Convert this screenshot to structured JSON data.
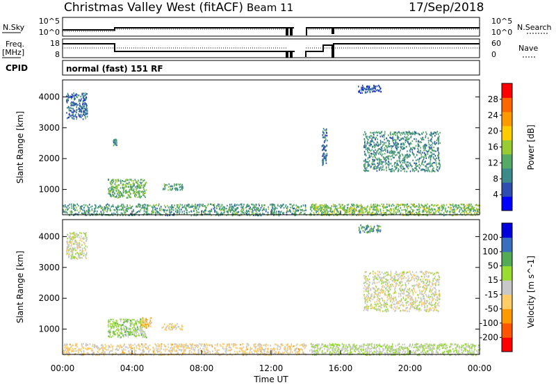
{
  "header": {
    "station": "Christmas Valley West (fitACF)",
    "beam": "Beam 11",
    "date": "17/Sep/2018"
  },
  "side_labels": {
    "nsky": "N.Sky",
    "nsearch": "N.Search",
    "freq": "Freq.",
    "mhz": "[MHz]",
    "nave": "Nave",
    "cpid": "CPID",
    "cpid_value": "normal (fast) 151 RF"
  },
  "mini_axes": {
    "noise_ticks_left": [
      "10^5",
      "10^0"
    ],
    "noise_ticks_right": [
      "10^5",
      "10^0"
    ],
    "freq_ticks": [
      "18",
      "8"
    ],
    "nave_ticks": [
      "60",
      "0"
    ]
  },
  "chart_data": [
    {
      "type": "heatmap",
      "panel": "power",
      "ylabel": "Slant Range [km]",
      "xlabel": "",
      "xlim": [
        "00:00",
        "24:00"
      ],
      "ylim": [
        180,
        4550
      ],
      "y_ticks": [
        "1000",
        "2000",
        "3000",
        "4000"
      ],
      "colorbar_label": "Power [dB]",
      "colorbar_ticks": [
        "4",
        "8",
        "12",
        "16",
        "20",
        "24",
        "28"
      ],
      "colorbar_range": [
        0,
        32
      ],
      "colors": [
        "#0000ff",
        "#2e4fb0",
        "#3c8a8a",
        "#55aa66",
        "#99cc33",
        "#ffcc00",
        "#ff9900",
        "#ff6600",
        "#ff0000"
      ],
      "regions": [
        {
          "t0": 0.2,
          "t1": 1.4,
          "r0": 3300,
          "r1": 4150,
          "level": 6
        },
        {
          "t0": 2.6,
          "t1": 4.8,
          "r0": 750,
          "r1": 1350,
          "level": 13
        },
        {
          "t0": 5.7,
          "t1": 6.9,
          "r0": 1000,
          "r1": 1200,
          "level": 11
        },
        {
          "t0": 2.9,
          "t1": 3.1,
          "r0": 2450,
          "r1": 2650,
          "level": 8
        },
        {
          "t0": 0.0,
          "t1": 14.0,
          "r0": 180,
          "r1": 550,
          "level": 10
        },
        {
          "t0": 14.2,
          "t1": 24.0,
          "r0": 180,
          "r1": 550,
          "level": 14
        },
        {
          "t0": 17.3,
          "t1": 21.7,
          "r0": 1600,
          "r1": 2900,
          "level": 9
        },
        {
          "t0": 14.9,
          "t1": 15.2,
          "r0": 1800,
          "r1": 3000,
          "level": 6
        },
        {
          "t0": 17.0,
          "t1": 18.3,
          "r0": 4150,
          "r1": 4400,
          "level": 5
        }
      ]
    },
    {
      "type": "heatmap",
      "panel": "velocity",
      "ylabel": "Slant Range [km]",
      "xlabel": "Time UT",
      "x_ticks": [
        "00:00",
        "04:00",
        "08:00",
        "12:00",
        "16:00",
        "20:00",
        "00:00"
      ],
      "xlim": [
        "00:00",
        "24:00"
      ],
      "ylim": [
        180,
        4550
      ],
      "y_ticks": [
        "1000",
        "2000",
        "3000",
        "4000"
      ],
      "colorbar_label": "Velocity [m s^-1]",
      "colorbar_ticks": [
        "200",
        "100",
        "50",
        "15",
        "-15",
        "-50",
        "-100",
        "-200"
      ],
      "colorbar_range": [
        -250,
        250
      ],
      "colors": [
        "#ff0000",
        "#ff5500",
        "#ff9900",
        "#ffcc66",
        "#c8c8c8",
        "#99dd33",
        "#55aa55",
        "#3a6fbf",
        "#0000dd"
      ],
      "regions": [
        {
          "t0": 0.2,
          "t1": 1.4,
          "r0": 3300,
          "r1": 4150,
          "velocity": 0
        },
        {
          "t0": 2.6,
          "t1": 4.8,
          "r0": 750,
          "r1": 1350,
          "velocity": 60
        },
        {
          "t0": 4.5,
          "t1": 5.1,
          "r0": 1050,
          "r1": 1400,
          "velocity": -80
        },
        {
          "t0": 5.7,
          "t1": 6.9,
          "r0": 1000,
          "r1": 1200,
          "velocity": -20
        },
        {
          "t0": 0.0,
          "t1": 14.0,
          "r0": 180,
          "r1": 550,
          "velocity": -40
        },
        {
          "t0": 14.2,
          "t1": 24.0,
          "r0": 180,
          "r1": 550,
          "velocity": 30
        },
        {
          "t0": 17.3,
          "t1": 21.7,
          "r0": 1600,
          "r1": 2900,
          "velocity": 0
        },
        {
          "t0": 17.0,
          "t1": 18.3,
          "r0": 4150,
          "r1": 4400,
          "velocity": 150
        }
      ]
    }
  ]
}
